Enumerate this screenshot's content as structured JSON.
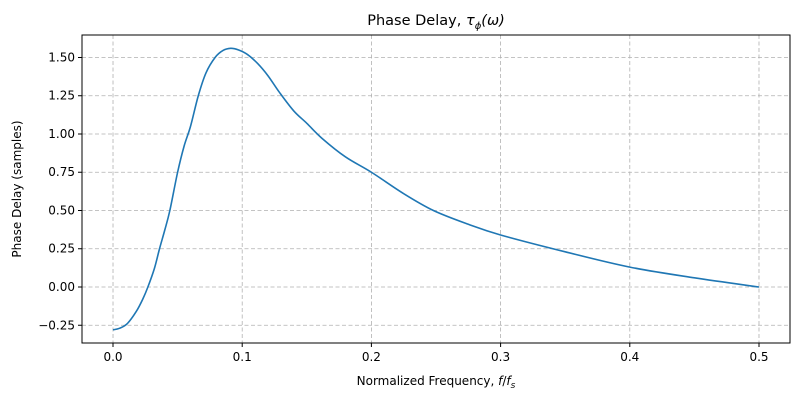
{
  "chart_data": {
    "type": "line",
    "title": "Phase Delay, τ_φ(ω)",
    "title_main": "Phase Delay, ",
    "title_math": "τ",
    "title_sub": "ϕ",
    "title_tail": "(ω)",
    "xlabel": "Normalized Frequency, f/f_s",
    "xlabel_main": "Normalized Frequency, ",
    "xlabel_f": "f",
    "xlabel_slash": "/",
    "xlabel_fs": "f",
    "xlabel_s": "s",
    "ylabel": "Phase Delay (samples)",
    "xlim": [
      -0.024,
      0.524
    ],
    "ylim": [
      -0.366,
      1.647
    ],
    "xticks": [
      0.0,
      0.1,
      0.2,
      0.3,
      0.4,
      0.5
    ],
    "xtick_labels": [
      "0.0",
      "0.1",
      "0.2",
      "0.3",
      "0.4",
      "0.5"
    ],
    "yticks": [
      -0.25,
      0.0,
      0.25,
      0.5,
      0.75,
      1.0,
      1.25,
      1.5
    ],
    "ytick_labels": [
      "−0.25",
      "0.00",
      "0.25",
      "0.50",
      "0.75",
      "1.00",
      "1.25",
      "1.50"
    ],
    "grid": true,
    "line_color": "#1f77b4",
    "series": [
      {
        "x": [
          0.0,
          0.005,
          0.011,
          0.018,
          0.023,
          0.027,
          0.032,
          0.036,
          0.04,
          0.044,
          0.05,
          0.055,
          0.06,
          0.066,
          0.072,
          0.079,
          0.085,
          0.091,
          0.097,
          0.104,
          0.112,
          0.12,
          0.129,
          0.14,
          0.15,
          0.162,
          0.18,
          0.2,
          0.225,
          0.248,
          0.275,
          0.3,
          0.35,
          0.4,
          0.45,
          0.5
        ],
        "y": [
          -0.28,
          -0.27,
          -0.24,
          -0.16,
          -0.08,
          0.0,
          0.12,
          0.25,
          0.37,
          0.5,
          0.75,
          0.92,
          1.05,
          1.25,
          1.4,
          1.5,
          1.545,
          1.56,
          1.55,
          1.52,
          1.46,
          1.38,
          1.27,
          1.15,
          1.07,
          0.97,
          0.85,
          0.75,
          0.61,
          0.5,
          0.41,
          0.34,
          0.23,
          0.13,
          0.06,
          0.0
        ]
      }
    ]
  }
}
